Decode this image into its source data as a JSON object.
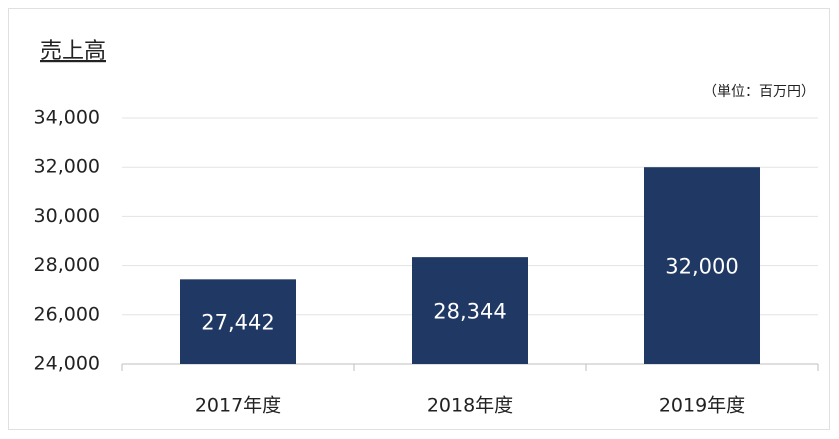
{
  "chart_data": {
    "type": "bar",
    "title": "売上高",
    "unit_label": "（単位：百万円）",
    "categories": [
      "2017年度",
      "2018年度",
      "2019年度"
    ],
    "values": [
      27442,
      28344,
      32000
    ],
    "value_labels": [
      "27,442",
      "28,344",
      "32,000"
    ],
    "color": "#203864",
    "ylim": [
      24000,
      34000
    ],
    "yticks": [
      {
        "value": 24000,
        "label": "24,000"
      },
      {
        "value": 26000,
        "label": "26,000"
      },
      {
        "value": 28000,
        "label": "28,000"
      },
      {
        "value": 30000,
        "label": "30,000"
      },
      {
        "value": 32000,
        "label": "32,000"
      },
      {
        "value": 34000,
        "label": "34,000"
      }
    ],
    "grid": true
  }
}
